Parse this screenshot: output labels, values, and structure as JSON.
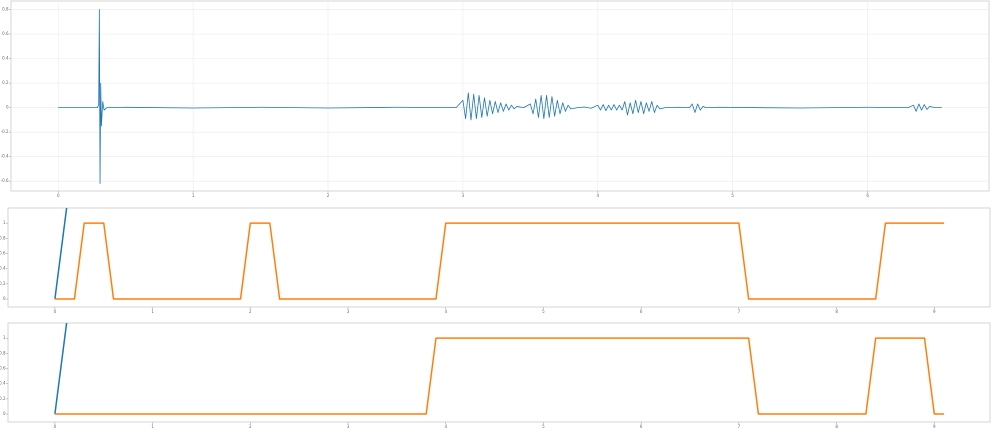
{
  "chart_data": [
    {
      "type": "line",
      "grid": true,
      "xlim": [
        -0.35,
        6.9
      ],
      "ylim": [
        -0.68,
        0.87
      ],
      "xticks": [
        0,
        1,
        2,
        3,
        4,
        5,
        6
      ],
      "yticks": [
        -0.6,
        -0.4,
        -0.2,
        0,
        0.2,
        0.4,
        0.6,
        0.8
      ],
      "series": [
        {
          "color": "#1f77b4",
          "x": [
            0,
            0.29,
            0.3,
            0.305,
            0.31,
            0.315,
            0.32,
            0.33,
            0.34,
            0.36,
            0.5,
            1.0,
            1.5,
            2.0,
            2.5,
            2.95,
            3.0,
            3.02,
            3.04,
            3.06,
            3.08,
            3.1,
            3.12,
            3.14,
            3.16,
            3.18,
            3.2,
            3.22,
            3.24,
            3.26,
            3.28,
            3.3,
            3.32,
            3.34,
            3.36,
            3.38,
            3.4,
            3.45,
            3.5,
            3.52,
            3.54,
            3.56,
            3.58,
            3.6,
            3.62,
            3.64,
            3.66,
            3.68,
            3.7,
            3.72,
            3.74,
            3.76,
            3.78,
            3.8,
            3.85,
            3.9,
            3.95,
            4.0,
            4.02,
            4.04,
            4.06,
            4.08,
            4.1,
            4.12,
            4.14,
            4.16,
            4.18,
            4.2,
            4.22,
            4.24,
            4.26,
            4.28,
            4.3,
            4.32,
            4.34,
            4.36,
            4.38,
            4.4,
            4.42,
            4.44,
            4.46,
            4.5,
            4.6,
            4.68,
            4.7,
            4.72,
            4.74,
            4.76,
            4.78,
            4.8,
            4.9,
            5.5,
            6.0,
            6.3,
            6.34,
            6.36,
            6.38,
            6.4,
            6.42,
            6.44,
            6.46,
            6.5,
            6.55
          ],
          "values": [
            0,
            0,
            0.02,
            0.8,
            -0.62,
            0.2,
            -0.15,
            0.05,
            -0.02,
            0,
            0.003,
            -0.003,
            0.003,
            -0.003,
            0.003,
            0,
            0.06,
            -0.09,
            0.12,
            -0.1,
            0.11,
            -0.09,
            0.1,
            -0.08,
            0.08,
            -0.07,
            0.06,
            -0.05,
            0.05,
            -0.04,
            0.04,
            -0.03,
            0.03,
            -0.02,
            0.02,
            -0.01,
            0.01,
            0,
            0.03,
            -0.05,
            0.07,
            -0.08,
            0.1,
            -0.09,
            0.1,
            -0.08,
            0.09,
            -0.07,
            0.06,
            -0.05,
            0.04,
            -0.03,
            0.02,
            -0.01,
            0,
            0.005,
            -0.005,
            0.02,
            -0.02,
            0.025,
            -0.025,
            0.02,
            -0.02,
            0.025,
            -0.02,
            0.02,
            -0.02,
            0.05,
            -0.06,
            0.04,
            -0.05,
            0.06,
            -0.04,
            0.05,
            -0.05,
            0.04,
            -0.03,
            0.05,
            -0.04,
            0.02,
            -0.01,
            0,
            0.003,
            0,
            0.03,
            -0.04,
            0.03,
            -0.02,
            0.01,
            0,
            0.003,
            -0.003,
            0.003,
            0,
            0.02,
            -0.03,
            0.03,
            -0.02,
            0.025,
            -0.015,
            0.01,
            0,
            0
          ]
        }
      ]
    },
    {
      "type": "line",
      "grid": false,
      "xlim": [
        -0.48,
        9.57
      ],
      "ylim": [
        -0.105,
        1.2
      ],
      "xticks": [
        0,
        1,
        2,
        3,
        4,
        5,
        6,
        7,
        8,
        9
      ],
      "yticks": [
        0,
        0.2,
        0.4,
        0.6,
        0.8,
        1
      ],
      "series": [
        {
          "color": "#1f77b4",
          "x": [
            0,
            0.13
          ],
          "values": [
            0,
            1.3
          ]
        },
        {
          "color": "#ff7f0e",
          "x": [
            0,
            0.2,
            0.3,
            0.5,
            0.6,
            1.9,
            2.0,
            2.2,
            2.3,
            3.9,
            4.0,
            7.0,
            7.1,
            8.4,
            8.5,
            9.1
          ],
          "values": [
            0,
            0,
            1,
            1,
            0,
            0,
            1,
            1,
            0,
            0,
            1,
            1,
            0,
            0,
            1,
            1
          ]
        }
      ]
    },
    {
      "type": "line",
      "grid": false,
      "xlim": [
        -0.48,
        9.57
      ],
      "ylim": [
        -0.105,
        1.2
      ],
      "xticks": [
        0,
        1,
        2,
        3,
        4,
        5,
        6,
        7,
        8,
        9
      ],
      "yticks": [
        0,
        0.2,
        0.4,
        0.6,
        0.8,
        1
      ],
      "series": [
        {
          "color": "#1f77b4",
          "x": [
            0,
            0.13
          ],
          "values": [
            0,
            1.3
          ]
        },
        {
          "color": "#ff7f0e",
          "x": [
            0,
            3.8,
            3.9,
            7.1,
            7.2,
            8.3,
            8.4,
            8.9,
            9.0,
            9.1
          ],
          "values": [
            0,
            0,
            1,
            1,
            0,
            0,
            1,
            1,
            0,
            0
          ]
        }
      ]
    }
  ]
}
